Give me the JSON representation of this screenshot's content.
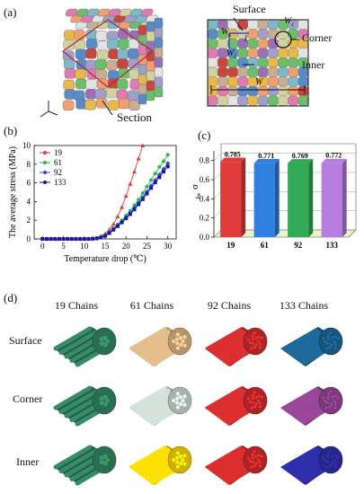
{
  "panel_a": {
    "label": "(a)",
    "section_label": "Section",
    "annotations": {
      "surface": "Surface",
      "corner": "Corner",
      "inner": "Inner",
      "wc": "W",
      "wc_sub": "c",
      "ws": "W",
      "ws_sub": "s",
      "wi": "W",
      "wi_sub": "i",
      "w": "W",
      "l": "l"
    },
    "colors": [
      "#c8463c",
      "#e8b84a",
      "#5a8bc7",
      "#9b6fb5",
      "#6bbf6b",
      "#e07ab0",
      "#d2d2a0",
      "#9f9fc9",
      "#c7ad92",
      "#7fb8c8",
      "#e3e3e3",
      "#f0a070"
    ]
  },
  "panel_b": {
    "label": "(b)",
    "chart_data": {
      "type": "line",
      "xlabel": "Temperature drop (℃)",
      "ylabel": "The average stress (MPa)",
      "xlim": [
        -2,
        32
      ],
      "ylim": [
        0,
        10
      ],
      "xticks": [
        0,
        5,
        10,
        15,
        20,
        25,
        30
      ],
      "yticks": [
        0,
        2,
        4,
        6,
        8,
        10
      ],
      "legend_position": "top-left",
      "series": [
        {
          "name": "19",
          "color": "#e03a3a",
          "marker": "triangle",
          "x": [
            0,
            1,
            2,
            3,
            4,
            5,
            6,
            7,
            8,
            9,
            10,
            11,
            12,
            13,
            14,
            15,
            16,
            17,
            18,
            19,
            20,
            21,
            22,
            23,
            24
          ],
          "y": [
            0,
            0,
            0,
            0,
            0,
            0,
            0,
            0,
            0,
            0,
            0,
            0,
            0.05,
            0.12,
            0.3,
            0.55,
            1.0,
            1.6,
            2.4,
            3.4,
            4.6,
            5.9,
            7.2,
            8.6,
            10.0
          ]
        },
        {
          "name": "61",
          "color": "#22bb44",
          "marker": "dot",
          "x": [
            0,
            1,
            2,
            3,
            4,
            5,
            6,
            7,
            8,
            9,
            10,
            11,
            12,
            13,
            14,
            15,
            16,
            17,
            18,
            19,
            20,
            21,
            22,
            23,
            24,
            25,
            26,
            27,
            28,
            29,
            30
          ],
          "y": [
            0,
            0,
            0,
            0,
            0,
            0,
            0,
            0,
            0,
            0,
            0,
            0,
            0.02,
            0.08,
            0.2,
            0.4,
            0.75,
            1.15,
            1.55,
            2.0,
            2.5,
            3.0,
            3.6,
            4.2,
            4.9,
            5.6,
            6.3,
            7.0,
            7.7,
            8.3,
            9.0
          ]
        },
        {
          "name": "92",
          "color": "#3344dd",
          "marker": "diamond",
          "x": [
            0,
            1,
            2,
            3,
            4,
            5,
            6,
            7,
            8,
            9,
            10,
            11,
            12,
            13,
            14,
            15,
            16,
            17,
            18,
            19,
            20,
            21,
            22,
            23,
            24,
            25,
            26,
            27,
            28,
            29,
            30
          ],
          "y": [
            0,
            0,
            0,
            0,
            0,
            0,
            0,
            0,
            0,
            0,
            0,
            0,
            0.02,
            0.07,
            0.18,
            0.36,
            0.68,
            1.05,
            1.45,
            1.85,
            2.3,
            2.8,
            3.3,
            3.85,
            4.45,
            5.05,
            5.7,
            6.3,
            6.9,
            7.5,
            8.1
          ]
        },
        {
          "name": "133",
          "color": "#1a1aa0",
          "marker": "square",
          "x": [
            0,
            1,
            2,
            3,
            4,
            5,
            6,
            7,
            8,
            9,
            10,
            11,
            12,
            13,
            14,
            15,
            16,
            17,
            18,
            19,
            20,
            21,
            22,
            23,
            24,
            25,
            26,
            27,
            28,
            29,
            30
          ],
          "y": [
            0,
            0,
            0,
            0,
            0,
            0,
            0,
            0,
            0,
            0,
            0,
            0,
            0.02,
            0.06,
            0.16,
            0.33,
            0.62,
            0.98,
            1.36,
            1.76,
            2.2,
            2.65,
            3.15,
            3.7,
            4.25,
            4.85,
            5.45,
            6.05,
            6.6,
            7.2,
            7.75
          ]
        }
      ]
    }
  },
  "panel_c": {
    "label": "(c)",
    "chart_data": {
      "type": "bar",
      "categories": [
        "19",
        "61",
        "92",
        "133"
      ],
      "values": [
        0.785,
        0.771,
        0.769,
        0.772
      ],
      "value_labels": [
        "0.785",
        "0.771",
        "0.769",
        "0.772"
      ],
      "ylabel": "σ",
      "ylabel_sub": "fw",
      "ylim": [
        0,
        0.9
      ],
      "yticks": [
        "0.0",
        "0.2",
        "0.4",
        "0.6",
        "0.8"
      ],
      "colors": [
        "#e03a3a",
        "#2f7fe0",
        "#33aa55",
        "#b77ce0"
      ]
    }
  },
  "panel_d": {
    "label": "(d)",
    "columns": [
      "19 Chains",
      "61 Chains",
      "92 Chains",
      "133 Chains"
    ],
    "rows": [
      "Surface",
      "Corner",
      "Inner"
    ],
    "colors": [
      [
        "#2f7a5a",
        "#c9a67a",
        "#c0282a",
        "#1a5f8a"
      ],
      [
        "#2f7a5a",
        "#b8c6c0",
        "#c0282a",
        "#8a3f8a"
      ],
      [
        "#2f7a5a",
        "#e8c400",
        "#c0282a",
        "#2a2a9a"
      ]
    ]
  }
}
